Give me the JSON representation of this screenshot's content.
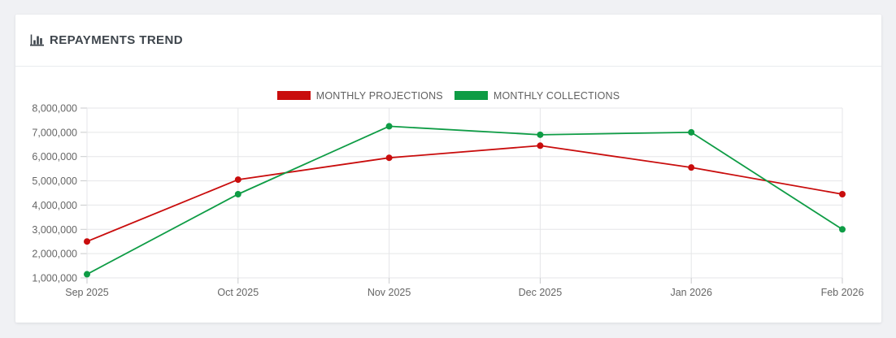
{
  "card": {
    "title": "REPAYMENTS TREND"
  },
  "chart_data": {
    "type": "line",
    "title": "REPAYMENTS TREND",
    "categories": [
      "Sep 2025",
      "Oct 2025",
      "Nov 2025",
      "Dec 2025",
      "Jan 2026",
      "Feb 2026"
    ],
    "series": [
      {
        "name": "MONTHLY PROJECTIONS",
        "color": "#c90d0d",
        "values": [
          2500000,
          5050000,
          5950000,
          6450000,
          5550000,
          4450000
        ]
      },
      {
        "name": "MONTHLY COLLECTIONS",
        "color": "#0e9c45",
        "values": [
          1150000,
          4450000,
          7250000,
          6900000,
          7000000,
          3000000
        ]
      }
    ],
    "xlabel": "",
    "ylabel": "",
    "ylim": [
      1000000,
      8000000
    ],
    "y_ticks": [
      8000000,
      7000000,
      6000000,
      5000000,
      4000000,
      3000000,
      2000000,
      1000000
    ],
    "y_tick_labels": [
      "8,000,000",
      "7,000,000",
      "6,000,000",
      "5,000,000",
      "4,000,000",
      "3,000,000",
      "2,000,000",
      "1,000,000"
    ],
    "grid": true,
    "legend_position": "top",
    "grid_color": "#e5e6e8",
    "tick_color": "#c9cacc",
    "axis_label_color": "#666666"
  }
}
